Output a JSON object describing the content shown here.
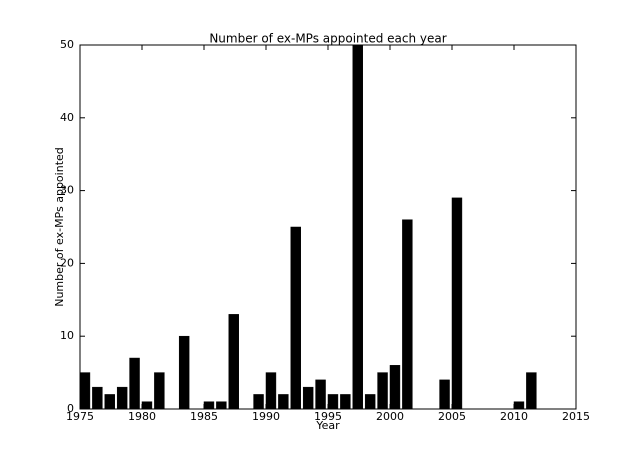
{
  "chart_data": {
    "type": "bar",
    "title": "Number of ex-MPs appointed each year",
    "xlabel": "Year",
    "ylabel": "Number of ex-MPs appointed",
    "x": [
      1975,
      1976,
      1977,
      1978,
      1979,
      1980,
      1981,
      1983,
      1985,
      1986,
      1987,
      1989,
      1990,
      1991,
      1992,
      1993,
      1994,
      1995,
      1996,
      1997,
      1998,
      1999,
      2000,
      2001,
      2004,
      2005,
      2010,
      2011
    ],
    "values": [
      5,
      3,
      2,
      3,
      7,
      1,
      5,
      10,
      1,
      1,
      13,
      2,
      5,
      2,
      25,
      3,
      4,
      2,
      2,
      50,
      2,
      5,
      6,
      26,
      4,
      29,
      1,
      5
    ],
    "color": "#000000",
    "xlim": [
      1975,
      2015
    ],
    "xticks": [
      1975,
      1980,
      1985,
      1990,
      1995,
      2000,
      2005,
      2010,
      2015
    ],
    "ylim": [
      0,
      50
    ],
    "yticks": [
      0,
      10,
      20,
      30,
      40,
      50
    ],
    "grid": false
  }
}
